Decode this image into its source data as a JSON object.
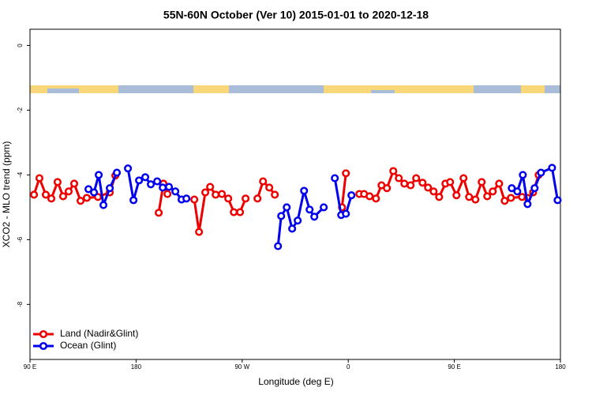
{
  "chart_data": {
    "type": "line",
    "title": "55N-60N October (Ver 10)   2015-01-01 to 2020-12-18",
    "x_label": "Longitude (deg E)",
    "y_label": "XCO2 - MLO trend (ppm)",
    "xlim": [
      90,
      540
    ],
    "ylim": [
      -9.7,
      0.5
    ],
    "xticks": [
      {
        "value": 90,
        "label": "90 E"
      },
      180,
      {
        "value": 270,
        "label": "90 W"
      },
      {
        "value": 360,
        "label": "0"
      },
      {
        "value": 450,
        "label": "90 E"
      },
      {
        "value": 540,
        "label": "180"
      }
    ],
    "yticks": [
      0,
      -2,
      -4,
      -6,
      -8
    ],
    "legend": "bottom-left",
    "series": [
      {
        "name": "Land (Nadir&Glint)",
        "color": "#ee0000",
        "x": [
          93.4,
          98,
          103.4,
          108.1,
          113.4,
          118.1,
          122.8,
          127.5,
          132.9,
          138.2,
          147.6,
          157.7,
          162.4,
          180,
          199.2,
          203.2,
          206.6,
          218,
          229.4,
          233.4,
          238.7,
          242.8,
          247.5,
          252.8,
          258.2,
          262.9,
          268.2,
          272.9,
          278,
          283,
          287.7,
          293,
          297.7,
          325,
          354.7,
          358,
          364,
          369.4,
          373.4,
          378.1,
          383.5,
          388.2,
          392.8,
          398.2,
          402.9,
          407.6,
          412.9,
          417.6,
          423,
          427.7,
          432.4,
          437.1,
          442.4,
          446.4,
          451.8,
          457.8,
          462.5,
          467.9,
          473.2,
          477.9,
          482.6,
          488,
          492.7,
          498,
          507.4,
          512.1,
          516.8,
          521.5
        ],
        "values": [
          -4.61,
          -4.1,
          -4.61,
          -4.73,
          -4.22,
          -4.66,
          -4.51,
          -4.27,
          -4.8,
          -4.71,
          -4.68,
          -4.54,
          -4.02,
          null,
          -5.17,
          -4.27,
          -4.59,
          null,
          -4.76,
          -5.76,
          -4.54,
          -4.37,
          -4.61,
          -4.59,
          -4.73,
          -5.15,
          -5.15,
          -4.73,
          null,
          -4.73,
          -4.2,
          -4.39,
          -4.61,
          null,
          -5.0,
          -3.95,
          null,
          -4.59,
          -4.59,
          -4.66,
          -4.73,
          -4.32,
          -4.41,
          -3.88,
          -4.1,
          -4.27,
          -4.32,
          -4.1,
          -4.24,
          -4.39,
          -4.51,
          -4.68,
          -4.27,
          -4.22,
          -4.63,
          -4.1,
          -4.68,
          -4.76,
          -4.22,
          -4.66,
          -4.51,
          -4.27,
          -4.8,
          -4.71,
          -4.68,
          -4.71,
          -4.54,
          -4.0
        ]
      },
      {
        "name": "Ocean (Glint)",
        "color": "#0000ee",
        "x": [
          139.6,
          144.3,
          148.3,
          152.3,
          157.7,
          163.7,
          168,
          173.1,
          177.8,
          182.5,
          187.8,
          192.5,
          197.9,
          202.6,
          207.9,
          213.3,
          218.6,
          222.7,
          290,
          300.4,
          303.1,
          307.8,
          312.4,
          317.1,
          322.5,
          327.2,
          331.2,
          339.2,
          345,
          348.6,
          354,
          358,
          362.7,
          450,
          498.7,
          503.4,
          508.1,
          512.1,
          518.1,
          523.5,
          532.9,
          537.6
        ],
        "values": [
          -4.44,
          -4.54,
          -4.0,
          -4.93,
          -4.41,
          -3.93,
          null,
          -3.8,
          -4.78,
          -4.17,
          -4.07,
          -4.29,
          -4.2,
          -4.39,
          -4.37,
          -4.51,
          -4.76,
          -4.73,
          null,
          -6.2,
          -5.27,
          -5.0,
          -5.66,
          -5.41,
          -4.49,
          -5.07,
          -5.29,
          -5.0,
          null,
          -4.1,
          -5.24,
          -5.2,
          -4.63,
          null,
          -4.41,
          -4.51,
          -4.0,
          -4.9,
          -4.41,
          -3.93,
          -3.78,
          -4.78
        ]
      }
    ]
  }
}
